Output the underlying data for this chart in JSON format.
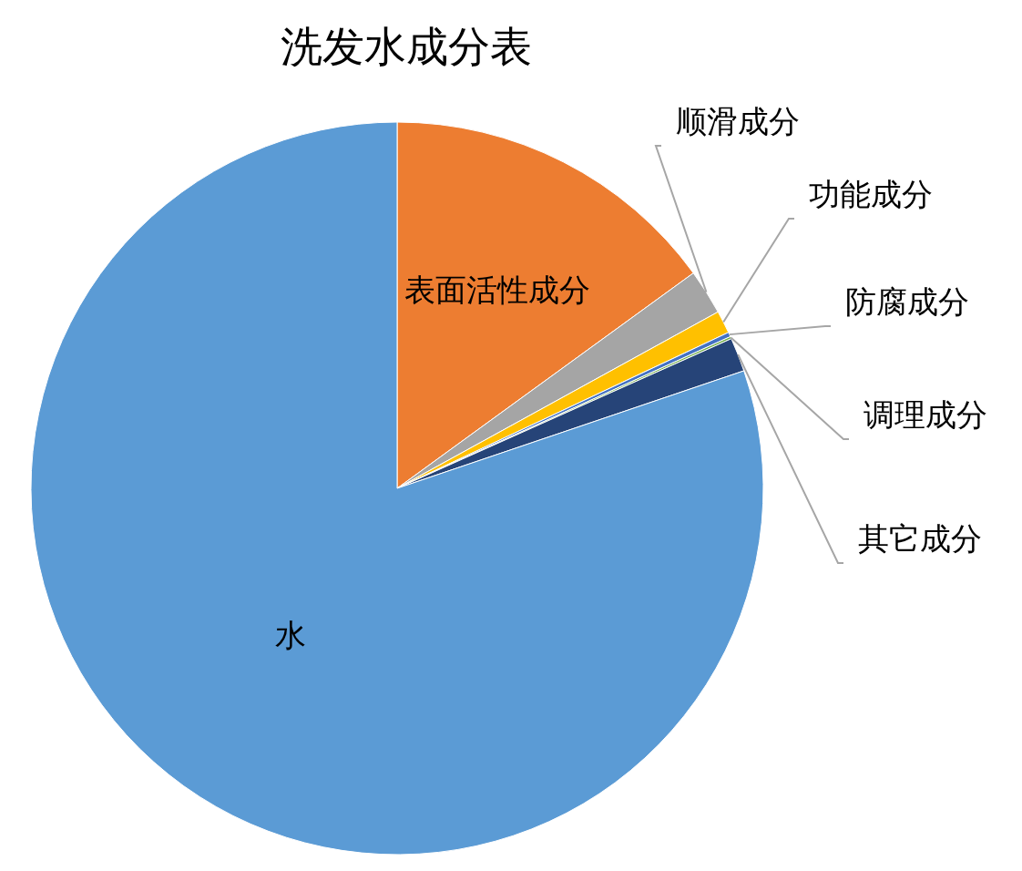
{
  "chart_data": {
    "type": "pie",
    "title": "洗发水成分表",
    "categories": [
      "表面活性成分",
      "顺滑成分",
      "功能成分",
      "防腐成分",
      "调理成分",
      "其它成分",
      "水"
    ],
    "values": [
      15,
      2,
      1,
      0.2,
      0.1,
      1.5,
      80.2
    ],
    "colors": [
      "#ed7d31",
      "#a5a5a5",
      "#ffc000",
      "#4472c4",
      "#70ad47",
      "#264478",
      "#5b9bd5"
    ]
  }
}
